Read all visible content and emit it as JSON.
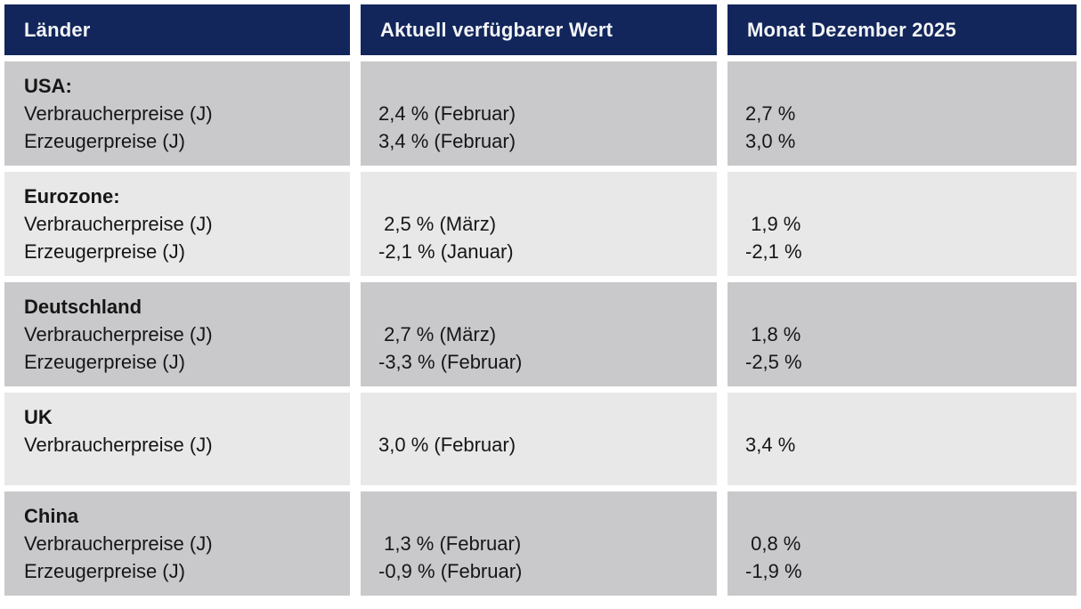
{
  "colors": {
    "header_bg": "#12265b",
    "header_text": "#f4f5f7",
    "row_dark": "#c9c9cc",
    "row_light": "#e8e8e9",
    "body_text": "#161616",
    "gutter": "#ffffff"
  },
  "table": {
    "columns": [
      {
        "label": "Länder"
      },
      {
        "label": "Aktuell verfügbarer Wert"
      },
      {
        "label": "Monat Dezember 2025"
      }
    ],
    "rows": [
      {
        "country": "USA:",
        "indicators": "Verbraucherpreise (J)\nErzeugerpreise (J)",
        "current": "2,4 % (Februar)\n3,4 % (Februar)",
        "december": "2,7 %\n3,0 %"
      },
      {
        "country": "Eurozone:",
        "indicators": "Verbraucherpreise (J)\nErzeugerpreise (J)",
        "current": " 2,5 % (März)\n-2,1 % (Januar)",
        "december": " 1,9 %\n-2,1 %"
      },
      {
        "country": "Deutschland",
        "indicators": "Verbraucherpreise (J)\nErzeugerpreise (J)",
        "current": " 2,7 % (März)\n-3,3 % (Februar)",
        "december": " 1,8 %\n-2,5 %"
      },
      {
        "country": "UK",
        "indicators": "Verbraucherpreise (J)",
        "current": "3,0 % (Februar)",
        "december": "3,4 %"
      },
      {
        "country": "China",
        "indicators": "Verbraucherpreise (J)\nErzeugerpreise (J)",
        "current": " 1,3 % (Februar)\n-0,9 % (Februar)",
        "december": " 0,8 %\n-1,9 %"
      }
    ]
  }
}
